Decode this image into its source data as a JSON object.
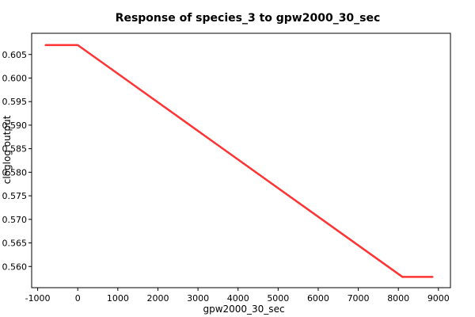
{
  "chart_data": {
    "type": "line",
    "title": "Response of species_3 to gpw2000_30_sec",
    "xlabel": "gpw2000_30_sec",
    "ylabel": "cloglog output",
    "xlim": [
      -1150,
      9300
    ],
    "ylim": [
      0.5555,
      0.6095
    ],
    "grid": true,
    "x_ticks": [
      -1000,
      0,
      1000,
      2000,
      3000,
      4000,
      5000,
      6000,
      7000,
      8000,
      9000
    ],
    "x_tick_labels": [
      "-1000",
      "0",
      "1000",
      "2000",
      "3000",
      "4000",
      "5000",
      "6000",
      "7000",
      "8000",
      "9000"
    ],
    "y_ticks": [
      0.56,
      0.565,
      0.57,
      0.575,
      0.58,
      0.585,
      0.59,
      0.595,
      0.6,
      0.605
    ],
    "y_tick_labels": [
      "0.560",
      "0.565",
      "0.570",
      "0.575",
      "0.580",
      "0.585",
      "0.590",
      "0.595",
      "0.600",
      "0.605"
    ],
    "series": [
      {
        "color": "#ff3333",
        "x": [
          -800,
          0,
          8100,
          8850
        ],
        "y": [
          0.607,
          0.607,
          0.5578,
          0.5578
        ]
      }
    ]
  }
}
